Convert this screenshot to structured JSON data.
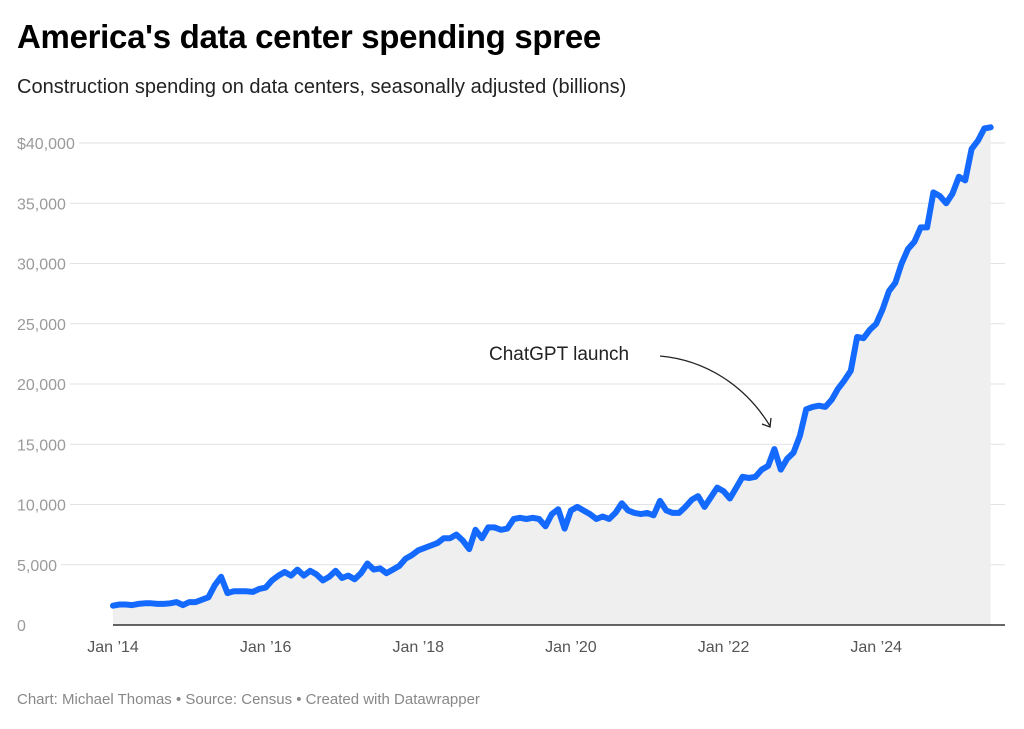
{
  "chart_data": {
    "type": "area",
    "title": "America's data center spending spree",
    "subtitle": "Construction spending on data centers, seasonally adjusted (billions)",
    "footer": "Chart: Michael Thomas • Source: Census • Created with Datawrapper",
    "ylim": [
      0,
      40000
    ],
    "yticks": [
      0,
      5000,
      10000,
      15000,
      20000,
      25000,
      30000,
      35000,
      40000
    ],
    "ytick_labels": [
      "0",
      "5,000",
      "10,000",
      "15,000",
      "20,000",
      "25,000",
      "30,000",
      "35,000",
      "$40,000"
    ],
    "xticks": [
      "2014-01",
      "2016-01",
      "2018-01",
      "2020-01",
      "2022-01",
      "2024-01"
    ],
    "xtick_labels": [
      "Jan ’14",
      "Jan ’16",
      "Jan ’18",
      "Jan ’20",
      "Jan ’22",
      "Jan ’24"
    ],
    "grid": true,
    "colors": {
      "line": "#1469ff",
      "area": "#efefef",
      "grid": "#e2e2e2"
    },
    "annotation": {
      "text": "ChatGPT launch",
      "date": "2022-11"
    },
    "series": [
      {
        "points": [
          [
            "2014-01",
            1600
          ],
          [
            "2014-02",
            1700
          ],
          [
            "2014-03",
            1700
          ],
          [
            "2014-04",
            1650
          ],
          [
            "2014-05",
            1750
          ],
          [
            "2014-06",
            1800
          ],
          [
            "2014-07",
            1800
          ],
          [
            "2014-08",
            1750
          ],
          [
            "2014-09",
            1750
          ],
          [
            "2014-10",
            1800
          ],
          [
            "2014-11",
            1900
          ],
          [
            "2014-12",
            1650
          ],
          [
            "2015-01",
            1900
          ],
          [
            "2015-02",
            1900
          ],
          [
            "2015-03",
            2100
          ],
          [
            "2015-04",
            2300
          ],
          [
            "2015-05",
            3300
          ],
          [
            "2015-06",
            4000
          ],
          [
            "2015-07",
            2650
          ],
          [
            "2015-08",
            2800
          ],
          [
            "2015-09",
            2800
          ],
          [
            "2015-10",
            2800
          ],
          [
            "2015-11",
            2750
          ],
          [
            "2015-12",
            3000
          ],
          [
            "2016-01",
            3100
          ],
          [
            "2016-02",
            3700
          ],
          [
            "2016-03",
            4100
          ],
          [
            "2016-04",
            4400
          ],
          [
            "2016-05",
            4100
          ],
          [
            "2016-06",
            4600
          ],
          [
            "2016-07",
            4100
          ],
          [
            "2016-08",
            4500
          ],
          [
            "2016-09",
            4200
          ],
          [
            "2016-10",
            3700
          ],
          [
            "2016-11",
            4000
          ],
          [
            "2016-12",
            4500
          ],
          [
            "2017-01",
            3900
          ],
          [
            "2017-02",
            4100
          ],
          [
            "2017-03",
            3800
          ],
          [
            "2017-04",
            4300
          ],
          [
            "2017-05",
            5100
          ],
          [
            "2017-06",
            4600
          ],
          [
            "2017-07",
            4700
          ],
          [
            "2017-08",
            4300
          ],
          [
            "2017-09",
            4600
          ],
          [
            "2017-10",
            4900
          ],
          [
            "2017-11",
            5500
          ],
          [
            "2017-12",
            5800
          ],
          [
            "2018-01",
            6200
          ],
          [
            "2018-02",
            6400
          ],
          [
            "2018-03",
            6600
          ],
          [
            "2018-04",
            6800
          ],
          [
            "2018-05",
            7200
          ],
          [
            "2018-06",
            7200
          ],
          [
            "2018-07",
            7500
          ],
          [
            "2018-08",
            7000
          ],
          [
            "2018-09",
            6300
          ],
          [
            "2018-10",
            7900
          ],
          [
            "2018-11",
            7200
          ],
          [
            "2018-12",
            8100
          ],
          [
            "2019-01",
            8100
          ],
          [
            "2019-02",
            7900
          ],
          [
            "2019-03",
            8000
          ],
          [
            "2019-04",
            8800
          ],
          [
            "2019-05",
            8900
          ],
          [
            "2019-06",
            8800
          ],
          [
            "2019-07",
            8900
          ],
          [
            "2019-08",
            8800
          ],
          [
            "2019-09",
            8200
          ],
          [
            "2019-10",
            9200
          ],
          [
            "2019-11",
            9600
          ],
          [
            "2019-12",
            8000
          ],
          [
            "2020-01",
            9500
          ],
          [
            "2020-02",
            9800
          ],
          [
            "2020-03",
            9500
          ],
          [
            "2020-04",
            9200
          ],
          [
            "2020-05",
            8800
          ],
          [
            "2020-06",
            9000
          ],
          [
            "2020-07",
            8800
          ],
          [
            "2020-08",
            9300
          ],
          [
            "2020-09",
            10100
          ],
          [
            "2020-10",
            9500
          ],
          [
            "2020-11",
            9300
          ],
          [
            "2020-12",
            9200
          ],
          [
            "2021-01",
            9300
          ],
          [
            "2021-02",
            9100
          ],
          [
            "2021-03",
            10300
          ],
          [
            "2021-04",
            9500
          ],
          [
            "2021-05",
            9300
          ],
          [
            "2021-06",
            9300
          ],
          [
            "2021-07",
            9800
          ],
          [
            "2021-08",
            10400
          ],
          [
            "2021-09",
            10700
          ],
          [
            "2021-10",
            9800
          ],
          [
            "2021-11",
            10600
          ],
          [
            "2021-12",
            11400
          ],
          [
            "2022-01",
            11100
          ],
          [
            "2022-02",
            10500
          ],
          [
            "2022-03",
            11400
          ],
          [
            "2022-04",
            12300
          ],
          [
            "2022-05",
            12200
          ],
          [
            "2022-06",
            12300
          ],
          [
            "2022-07",
            12900
          ],
          [
            "2022-08",
            13200
          ],
          [
            "2022-09",
            14600
          ],
          [
            "2022-10",
            12900
          ],
          [
            "2022-11",
            13800
          ],
          [
            "2022-12",
            14300
          ],
          [
            "2023-01",
            15700
          ],
          [
            "2023-02",
            17900
          ],
          [
            "2023-03",
            18100
          ],
          [
            "2023-04",
            18200
          ],
          [
            "2023-05",
            18100
          ],
          [
            "2023-06",
            18700
          ],
          [
            "2023-07",
            19600
          ],
          [
            "2023-08",
            20300
          ],
          [
            "2023-09",
            21100
          ],
          [
            "2023-10",
            23900
          ],
          [
            "2023-11",
            23800
          ],
          [
            "2023-12",
            24500
          ],
          [
            "2024-01",
            25000
          ],
          [
            "2024-02",
            26200
          ],
          [
            "2024-03",
            27700
          ],
          [
            "2024-04",
            28400
          ],
          [
            "2024-05",
            30000
          ],
          [
            "2024-06",
            31200
          ],
          [
            "2024-07",
            31800
          ],
          [
            "2024-08",
            33000
          ],
          [
            "2024-09",
            33000
          ],
          [
            "2024-10",
            35900
          ],
          [
            "2024-11",
            35600
          ],
          [
            "2024-12",
            35000
          ],
          [
            "2025-01",
            35800
          ],
          [
            "2025-02",
            37200
          ],
          [
            "2025-03",
            36900
          ],
          [
            "2025-04",
            39500
          ],
          [
            "2025-05",
            40200
          ],
          [
            "2025-06",
            41200
          ],
          [
            "2025-07",
            41300
          ]
        ]
      }
    ]
  }
}
